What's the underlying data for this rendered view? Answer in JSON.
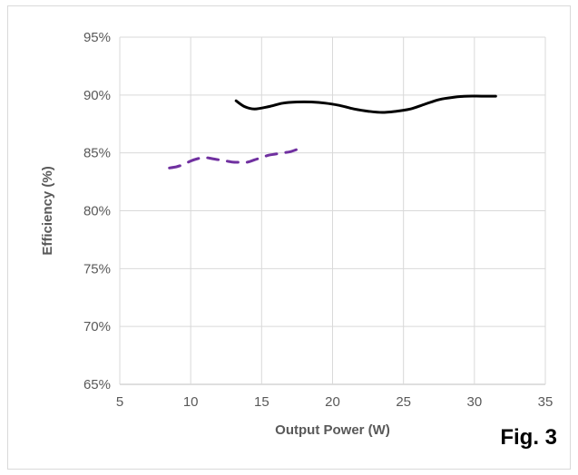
{
  "chart_data": {
    "type": "line",
    "title": "",
    "xlabel": "Output Power (W)",
    "ylabel": "Efficiency (%)",
    "xlim": [
      5,
      35
    ],
    "ylim": [
      65,
      95
    ],
    "x_ticks": [
      5,
      10,
      15,
      20,
      25,
      30,
      35
    ],
    "y_ticks": [
      65,
      70,
      75,
      80,
      85,
      90,
      95
    ],
    "y_tick_labels": [
      "65%",
      "70%",
      "75%",
      "80%",
      "85%",
      "90%",
      "95%"
    ],
    "grid": true,
    "legend": "none",
    "series": [
      {
        "color": "#000000",
        "style": "solid",
        "x": [
          13.2,
          13.8,
          14.5,
          15.5,
          16.5,
          17.5,
          18.5,
          19.5,
          20.5,
          21.5,
          22.5,
          23.5,
          24.5,
          25.5,
          26.5,
          27.5,
          28.5,
          29.5,
          30.5,
          31.5
        ],
        "y": [
          89.5,
          89.0,
          88.8,
          89.0,
          89.3,
          89.4,
          89.4,
          89.3,
          89.1,
          88.8,
          88.6,
          88.5,
          88.6,
          88.8,
          89.2,
          89.6,
          89.8,
          89.9,
          89.9,
          89.9
        ]
      },
      {
        "color": "#7030a0",
        "style": "dashed",
        "x": [
          8.5,
          9.0,
          9.5,
          10.0,
          10.5,
          11.0,
          11.5,
          12.0,
          12.5,
          13.0,
          13.5,
          14.0,
          14.5,
          15.0,
          15.5,
          16.0,
          16.5,
          17.0,
          17.5,
          18.0
        ],
        "y": [
          83.7,
          83.8,
          84.0,
          84.3,
          84.5,
          84.6,
          84.5,
          84.4,
          84.3,
          84.2,
          84.2,
          84.2,
          84.4,
          84.6,
          84.8,
          84.9,
          85.0,
          85.1,
          85.3,
          85.5
        ]
      }
    ]
  },
  "figure_label": "Fig. 3"
}
